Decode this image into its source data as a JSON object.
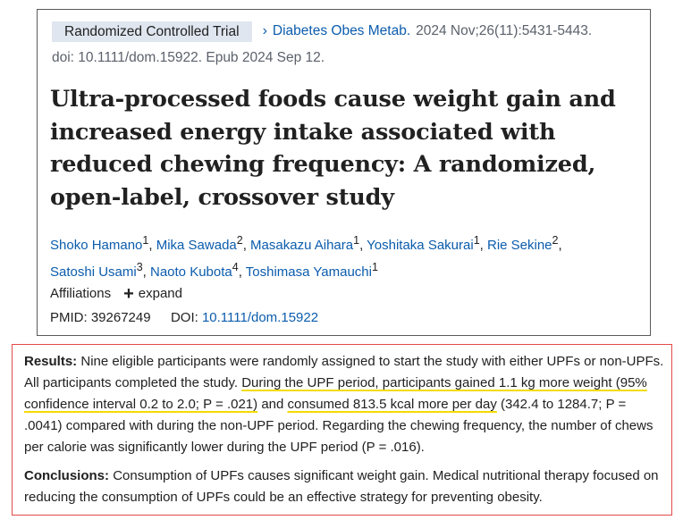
{
  "citation": {
    "article_type": "Randomized Controlled Trial",
    "journal": "Diabetes Obes Metab.",
    "details": "2024 Nov;26(11):5431-5443.",
    "doi_line": "doi: 10.1111/dom.15922. Epub 2024 Sep 12."
  },
  "title": "Ultra-processed foods cause weight gain and increased energy intake associated with reduced chewing frequency: A randomized, open-label, crossover study",
  "authors": [
    {
      "name": "Shoko Hamano",
      "aff": "1"
    },
    {
      "name": "Mika Sawada",
      "aff": "2"
    },
    {
      "name": "Masakazu Aihara",
      "aff": "1"
    },
    {
      "name": "Yoshitaka Sakurai",
      "aff": "1"
    },
    {
      "name": "Rie Sekine",
      "aff": "2"
    },
    {
      "name": "Satoshi Usami",
      "aff": "3"
    },
    {
      "name": "Naoto Kubota",
      "aff": "4"
    },
    {
      "name": "Toshimasa Yamauchi",
      "aff": "1"
    }
  ],
  "affiliations": {
    "label": "Affiliations",
    "expand": "expand"
  },
  "ids": {
    "pmid_label": "PMID:",
    "pmid": "39267249",
    "doi_label": "DOI:",
    "doi": "10.1111/dom.15922"
  },
  "results": {
    "label": "Results:",
    "text_a": "Nine eligible participants were randomly assigned to start the study with either UPFs or non-UPFs. All participants completed the study.",
    "highlight_1": "During the UPF period, participants gained 1.1 kg more weight (95% confidence interval 0.2 to 2.0; P = .021)",
    "text_b": "and",
    "highlight_2": "consumed 813.5 kcal more per day",
    "text_c": "(342.4 to 1284.7; P = .0041) compared with during the non-UPF period. Regarding the chewing frequency, the number of chews per calorie was significantly lower during the UPF period (P = .016)."
  },
  "conclusions": {
    "label": "Conclusions:",
    "text": "Consumption of UPFs causes significant weight gain. Medical nutritional therapy focused on reducing the consumption of UPFs could be an effective strategy for preventing obesity."
  },
  "colors": {
    "link": "#0b5cad",
    "highlight": "#f2dc00",
    "border_red": "#e34a4a"
  }
}
